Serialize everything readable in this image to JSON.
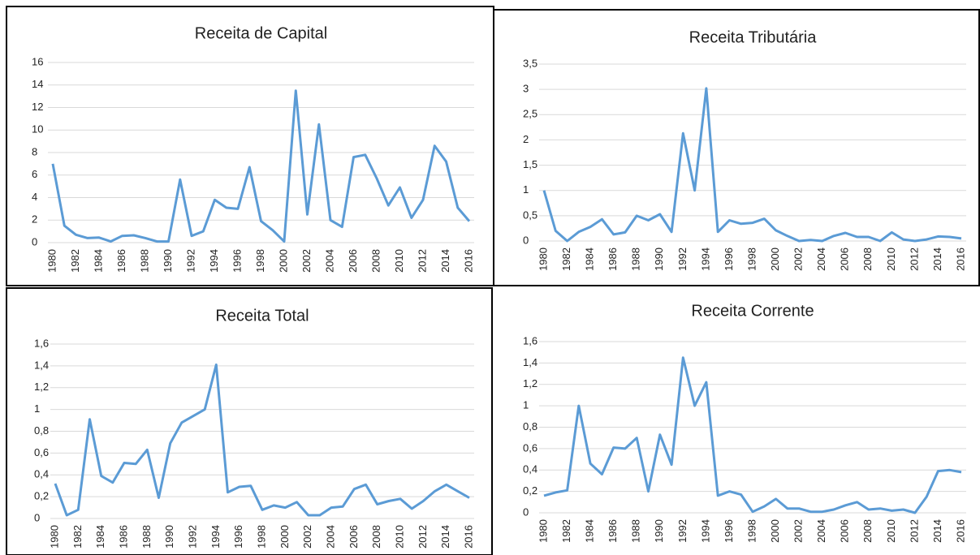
{
  "chart_data": [
    {
      "type": "line",
      "title": "Receita de Capital",
      "color": "#5b9bd5",
      "grid": true,
      "categories": [
        "1980",
        null,
        "1982",
        null,
        "1984",
        null,
        "1986",
        null,
        "1988",
        null,
        "1990",
        null,
        "1992",
        null,
        "1994",
        null,
        "1996",
        null,
        "1998",
        null,
        "2000",
        null,
        "2002",
        null,
        "2004",
        null,
        "2006",
        null,
        "2008",
        null,
        "2010",
        null,
        "2012",
        null,
        "2014",
        null,
        "2016"
      ],
      "values": [
        7.0,
        1.5,
        0.7,
        0.4,
        0.45,
        0.1,
        0.6,
        0.65,
        0.4,
        0.1,
        0.1,
        5.6,
        0.6,
        1.0,
        3.8,
        3.1,
        3.0,
        6.7,
        1.9,
        1.1,
        0.1,
        13.5,
        2.5,
        10.5,
        2.0,
        1.4,
        7.6,
        7.8,
        5.7,
        3.3,
        4.9,
        2.2,
        3.8,
        8.6,
        7.2,
        3.1,
        1.9
      ],
      "ylim": [
        0,
        16
      ],
      "yticks": [
        0,
        2,
        4,
        6,
        8,
        10,
        12,
        14,
        16
      ]
    },
    {
      "type": "line",
      "title": "Receita Tributária",
      "color": "#5b9bd5",
      "grid": true,
      "categories": [
        "1980",
        null,
        "1982",
        null,
        "1984",
        null,
        "1986",
        null,
        "1988",
        null,
        "1990",
        null,
        "1992",
        null,
        "1994",
        null,
        "1996",
        null,
        "1998",
        null,
        "2000",
        null,
        "2002",
        null,
        "2004",
        null,
        "2006",
        null,
        "2008",
        null,
        "2010",
        null,
        "2012",
        null,
        "2014",
        null,
        "2016"
      ],
      "values": [
        1.0,
        0.2,
        0.0,
        0.18,
        0.28,
        0.43,
        0.13,
        0.17,
        0.5,
        0.41,
        0.53,
        0.18,
        2.13,
        1.0,
        3.02,
        0.18,
        0.41,
        0.34,
        0.36,
        0.44,
        0.21,
        0.1,
        0.0,
        0.02,
        0.0,
        0.1,
        0.16,
        0.08,
        0.08,
        0.0,
        0.17,
        0.03,
        0.0,
        0.03,
        0.09,
        0.08,
        0.05
      ],
      "ylim": [
        0,
        3.5
      ],
      "yticks": [
        0,
        {
          "value": 0.5,
          "label": "0,5"
        },
        1,
        {
          "value": 1.5,
          "label": "1,5"
        },
        2,
        {
          "value": 2.5,
          "label": "2,5"
        },
        3,
        {
          "value": 3.5,
          "label": "3,5"
        }
      ]
    },
    {
      "type": "line",
      "title": "Receita Total",
      "color": "#5b9bd5",
      "grid": true,
      "categories": [
        "1980",
        null,
        "1982",
        null,
        "1984",
        null,
        "1986",
        null,
        "1988",
        null,
        "1990",
        null,
        "1992",
        null,
        "1994",
        null,
        "1996",
        null,
        "1998",
        null,
        "2000",
        null,
        "2002",
        null,
        "2004",
        null,
        "2006",
        null,
        "2008",
        null,
        "2010",
        null,
        "2012",
        null,
        "2014",
        null,
        "2016"
      ],
      "values": [
        0.32,
        0.03,
        0.08,
        0.91,
        0.39,
        0.33,
        0.51,
        0.5,
        0.63,
        0.19,
        0.69,
        0.88,
        0.94,
        1.0,
        1.41,
        0.24,
        0.29,
        0.3,
        0.08,
        0.12,
        0.1,
        0.15,
        0.03,
        0.03,
        0.1,
        0.11,
        0.27,
        0.31,
        0.13,
        0.16,
        0.18,
        0.09,
        0.16,
        0.25,
        0.31,
        0.25,
        0.19
      ],
      "ylim": [
        0,
        1.6
      ],
      "yticks": [
        0,
        {
          "value": 0.2,
          "label": "0,2"
        },
        {
          "value": 0.4,
          "label": "0,4"
        },
        {
          "value": 0.6,
          "label": "0,6"
        },
        {
          "value": 0.8,
          "label": "0,8"
        },
        1,
        {
          "value": 1.2,
          "label": "1,2"
        },
        {
          "value": 1.4,
          "label": "1,4"
        },
        {
          "value": 1.6,
          "label": "1,6"
        }
      ]
    },
    {
      "type": "line",
      "title": "Receita Corrente",
      "color": "#5b9bd5",
      "grid": true,
      "categories": [
        "1980",
        null,
        "1982",
        null,
        "1984",
        null,
        "1986",
        null,
        "1988",
        null,
        "1990",
        null,
        "1992",
        null,
        "1994",
        null,
        "1996",
        null,
        "1998",
        null,
        "2000",
        null,
        "2002",
        null,
        "2004",
        null,
        "2006",
        null,
        "2008",
        null,
        "2010",
        null,
        "2012",
        null,
        "2014",
        null,
        "2016"
      ],
      "values": [
        0.16,
        0.19,
        0.21,
        1.0,
        0.46,
        0.36,
        0.61,
        0.6,
        0.7,
        0.2,
        0.73,
        0.45,
        1.45,
        1.0,
        1.22,
        0.16,
        0.2,
        0.17,
        0.01,
        0.06,
        0.13,
        0.04,
        0.04,
        0.01,
        0.01,
        0.03,
        0.07,
        0.1,
        0.03,
        0.04,
        0.02,
        0.03,
        0.0,
        0.15,
        0.39,
        0.4,
        0.38
      ],
      "ylim": [
        0,
        1.6
      ],
      "yticks": [
        0,
        {
          "value": 0.2,
          "label": "0,2"
        },
        {
          "value": 0.4,
          "label": "0,4"
        },
        {
          "value": 0.6,
          "label": "0,6"
        },
        {
          "value": 0.8,
          "label": "0,8"
        },
        1,
        {
          "value": 1.2,
          "label": "1,2"
        },
        {
          "value": 1.4,
          "label": "1,4"
        },
        {
          "value": 1.6,
          "label": "1,6"
        }
      ]
    }
  ]
}
